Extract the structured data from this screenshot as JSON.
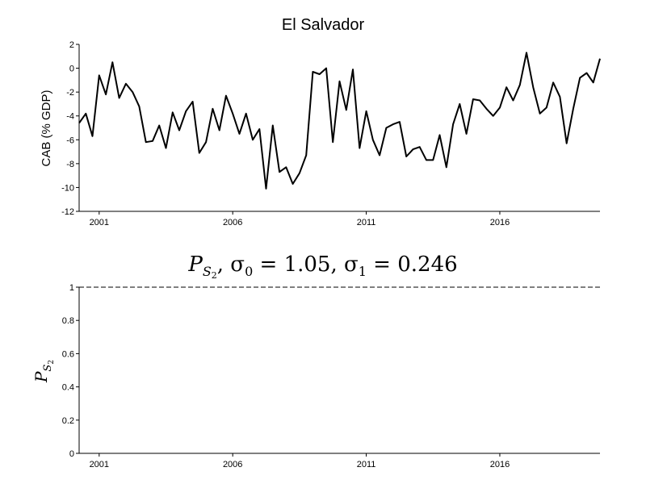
{
  "chart_data": [
    {
      "type": "line",
      "title": "El Salvador",
      "xlabel": "",
      "ylabel": "CAB (% GDP)",
      "xlim": [
        2000.25,
        2019.75
      ],
      "ylim": [
        -12,
        2
      ],
      "grid": false,
      "x_ticks": [
        2001,
        2006,
        2011,
        2016
      ],
      "x_tick_labels": [
        "2001",
        "2006",
        "2011",
        "2016"
      ],
      "y_ticks": [
        -12,
        -10,
        -8,
        -6,
        -4,
        -2,
        0,
        2
      ],
      "y_tick_labels": [
        "-12",
        "-10",
        "-8",
        "-6",
        "-4",
        "-2",
        "0",
        "2"
      ],
      "series": [
        {
          "color": "#000000",
          "x": [
            2000.25,
            2000.5,
            2000.75,
            2001.0,
            2001.25,
            2001.5,
            2001.75,
            2002.0,
            2002.25,
            2002.5,
            2002.75,
            2003.0,
            2003.25,
            2003.5,
            2003.75,
            2004.0,
            2004.25,
            2004.5,
            2004.75,
            2005.0,
            2005.25,
            2005.5,
            2005.75,
            2006.0,
            2006.25,
            2006.5,
            2006.75,
            2007.0,
            2007.25,
            2007.5,
            2007.75,
            2008.0,
            2008.25,
            2008.5,
            2008.75,
            2009.0,
            2009.25,
            2009.5,
            2009.75,
            2010.0,
            2010.25,
            2010.5,
            2010.75,
            2011.0,
            2011.25,
            2011.5,
            2011.75,
            2012.0,
            2012.25,
            2012.5,
            2012.75,
            2013.0,
            2013.25,
            2013.5,
            2013.75,
            2014.0,
            2014.25,
            2014.5,
            2014.75,
            2015.0,
            2015.25,
            2015.5,
            2015.75,
            2016.0,
            2016.25,
            2016.5,
            2016.75,
            2017.0,
            2017.25,
            2017.5,
            2017.75,
            2018.0,
            2018.25,
            2018.5,
            2018.75,
            2019.0,
            2019.25,
            2019.5,
            2019.75
          ],
          "y": [
            -4.6,
            -3.8,
            -5.7,
            -0.6,
            -2.2,
            0.5,
            -2.5,
            -1.3,
            -2.0,
            -3.2,
            -6.2,
            -6.1,
            -4.8,
            -6.7,
            -3.7,
            -5.2,
            -3.6,
            -2.8,
            -7.1,
            -6.2,
            -3.4,
            -5.2,
            -2.3,
            -3.8,
            -5.5,
            -3.8,
            -6.0,
            -5.1,
            -10.1,
            -4.8,
            -8.7,
            -8.3,
            -9.7,
            -8.8,
            -7.3,
            -0.3,
            -0.5,
            0.0,
            -6.2,
            -1.1,
            -3.5,
            -0.1,
            -6.7,
            -3.6,
            -6.0,
            -7.3,
            -5.0,
            -4.7,
            -4.5,
            -7.4,
            -6.8,
            -6.6,
            -7.7,
            -7.7,
            -5.6,
            -8.3,
            -4.7,
            -3.0,
            -5.5,
            -2.6,
            -2.7,
            -3.4,
            -4.0,
            -3.3,
            -1.6,
            -2.7,
            -1.4,
            1.3,
            -1.6,
            -3.8,
            -3.3,
            -1.2,
            -2.4,
            -6.3,
            -3.4,
            -0.8,
            -0.4,
            -1.2,
            0.8
          ]
        }
      ]
    },
    {
      "type": "line",
      "title": "P_{S_2}, σ_0 = 1.05, σ_1 = 0.246",
      "title_parts": {
        "p": "P",
        "sub_s": "S",
        "sub_2": "2",
        "rest": ", σ",
        "s0_sub": "0",
        "s0_val": " = 1.05, σ",
        "s1_sub": "1",
        "s1_val": " = 0.246"
      },
      "xlabel": "",
      "ylabel": "P_{S_2}",
      "ylabel_parts": {
        "p": "P",
        "sub_s": "S",
        "sub_2": "2"
      },
      "xlim": [
        2000.25,
        2019.75
      ],
      "ylim": [
        0,
        1
      ],
      "grid": false,
      "x_ticks": [
        2001,
        2006,
        2011,
        2016
      ],
      "x_tick_labels": [
        "2001",
        "2006",
        "2011",
        "2016"
      ],
      "y_ticks": [
        0,
        0.2,
        0.4,
        0.6,
        0.8,
        1
      ],
      "y_tick_labels": [
        "0",
        "0.2",
        "0.4",
        "0.6",
        "0.8",
        "1"
      ],
      "series": [
        {
          "color": "#000000",
          "line_style": "dashed",
          "x": [
            2000.25,
            2019.75
          ],
          "y": [
            1,
            1
          ]
        }
      ]
    }
  ]
}
